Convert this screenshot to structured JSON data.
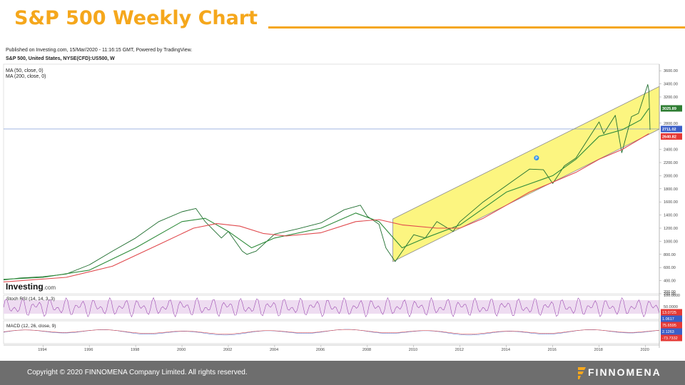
{
  "slide": {
    "title": "S&P 500 Weekly Chart",
    "copyright": "Copyright © 2020 FINNOMENA Company Limited. All rights reserved.",
    "brand": "FINNOMENA",
    "accent_color": "#f5a71c",
    "footer_color": "#6e6e6e"
  },
  "chart_header": {
    "published": "Published on Investing.com, 15/Mar/2020 - 11:16:15 GMT, Powered by TradingView.",
    "instrument": "S&P 500, United States, NYSE(CFD):US500, W",
    "indicator_ma50": "MA (50, close, 0)",
    "indicator_ma200": "MA (200, close, 0)",
    "watermark_main": "Investing",
    "watermark_suffix": ".com"
  },
  "chart_data": {
    "type": "line",
    "price_ylim": [
      200,
      3700
    ],
    "y_ticks": [
      "3600.00",
      "3400.00",
      "3200.00",
      "2800.00",
      "2400.00",
      "2200.00",
      "2000.00",
      "1800.00",
      "1600.00",
      "1400.00",
      "1200.00",
      "1000.00",
      "800.00",
      "600.00",
      "400.00",
      "200.00"
    ],
    "x_ticks": [
      "1994",
      "1996",
      "1998",
      "2000",
      "2002",
      "2004",
      "2006",
      "2008",
      "2010",
      "2012",
      "2014",
      "2016",
      "2018",
      "2020"
    ],
    "xlim": [
      1992.3,
      2020.6
    ],
    "series": [
      {
        "role": "price",
        "color": "#1f6e2f",
        "points": [
          [
            1992.3,
            410
          ],
          [
            1993,
            440
          ],
          [
            1994,
            460
          ],
          [
            1995,
            500
          ],
          [
            1996,
            640
          ],
          [
            1997,
            850
          ],
          [
            1998,
            1050
          ],
          [
            1999,
            1300
          ],
          [
            2000,
            1450
          ],
          [
            2000.6,
            1500
          ],
          [
            2001,
            1300
          ],
          [
            2001.7,
            1050
          ],
          [
            2002,
            1150
          ],
          [
            2002.6,
            850
          ],
          [
            2002.8,
            800
          ],
          [
            2003.2,
            850
          ],
          [
            2004,
            1110
          ],
          [
            2005,
            1190
          ],
          [
            2006,
            1280
          ],
          [
            2007,
            1480
          ],
          [
            2007.7,
            1550
          ],
          [
            2008,
            1380
          ],
          [
            2008.5,
            1260
          ],
          [
            2008.8,
            900
          ],
          [
            2009.2,
            690
          ],
          [
            2010,
            1100
          ],
          [
            2010.5,
            1050
          ],
          [
            2011,
            1300
          ],
          [
            2011.7,
            1150
          ],
          [
            2012,
            1300
          ],
          [
            2013,
            1600
          ],
          [
            2014,
            1850
          ],
          [
            2015,
            2100
          ],
          [
            2015.6,
            2090
          ],
          [
            2016,
            1880
          ],
          [
            2016.5,
            2150
          ],
          [
            2017,
            2270
          ],
          [
            2018,
            2820
          ],
          [
            2018.2,
            2640
          ],
          [
            2018.7,
            2920
          ],
          [
            2018.98,
            2350
          ],
          [
            2019.4,
            2900
          ],
          [
            2019.7,
            2950
          ],
          [
            2020.1,
            3390
          ],
          [
            2020.15,
            3300
          ],
          [
            2020.2,
            2700
          ]
        ]
      },
      {
        "role": "ma50",
        "color": "#2e8b3a",
        "points": [
          [
            1992.3,
            420
          ],
          [
            1994,
            450
          ],
          [
            1996,
            560
          ],
          [
            1998,
            900
          ],
          [
            2000,
            1300
          ],
          [
            2001,
            1350
          ],
          [
            2002,
            1150
          ],
          [
            2003,
            900
          ],
          [
            2004,
            1050
          ],
          [
            2006,
            1200
          ],
          [
            2007.5,
            1430
          ],
          [
            2008.5,
            1300
          ],
          [
            2009.5,
            900
          ],
          [
            2010.5,
            1050
          ],
          [
            2012,
            1250
          ],
          [
            2014,
            1750
          ],
          [
            2016,
            2000
          ],
          [
            2017,
            2250
          ],
          [
            2018,
            2600
          ],
          [
            2019,
            2700
          ],
          [
            2019.8,
            2850
          ],
          [
            2020.15,
            3025
          ]
        ]
      },
      {
        "role": "ma200",
        "color": "#e0494d",
        "points": [
          [
            1992.3,
            380
          ],
          [
            1995,
            450
          ],
          [
            1997,
            620
          ],
          [
            1999,
            950
          ],
          [
            2000.5,
            1200
          ],
          [
            2001.5,
            1270
          ],
          [
            2002.5,
            1230
          ],
          [
            2003.5,
            1120
          ],
          [
            2004.5,
            1080
          ],
          [
            2006,
            1130
          ],
          [
            2007.5,
            1300
          ],
          [
            2008.5,
            1330
          ],
          [
            2009.5,
            1250
          ],
          [
            2011,
            1200
          ],
          [
            2012,
            1200
          ],
          [
            2013,
            1350
          ],
          [
            2014,
            1550
          ],
          [
            2015,
            1750
          ],
          [
            2016,
            1900
          ],
          [
            2017,
            2050
          ],
          [
            2018,
            2250
          ],
          [
            2019,
            2400
          ],
          [
            2020.15,
            2640
          ]
        ]
      }
    ],
    "channel": {
      "upper": [
        [
          2009.1,
          1340
        ],
        [
          2020.6,
          3360
        ]
      ],
      "lower": [
        [
          2009.1,
          690
        ],
        [
          2020.6,
          2710
        ]
      ],
      "fill": "#fbf36a"
    },
    "horizontal_line": 2711.02,
    "price_labels": [
      {
        "text": "3025.89",
        "color": "#2e7d32"
      },
      {
        "text": "2711.02",
        "color": "#3b5fc8"
      },
      {
        "text": "2640.82",
        "color": "#e53935"
      }
    ],
    "marker": "P",
    "stoch_rsi": {
      "label": "Stoch RSI (14, 14, 3, 3)",
      "tick": "50.0000",
      "values": [
        {
          "text": "13.0725",
          "color": "#e53935"
        },
        {
          "text": "1.0617",
          "color": "#3b5fc8"
        }
      ]
    },
    "macd": {
      "label": "MACD (12, 26, close, 9)",
      "tick": "100.0000",
      "values": [
        {
          "text": "75.6595",
          "color": "#e53935"
        },
        {
          "text": "2.1263",
          "color": "#3b5fc8"
        },
        {
          "text": "-73.7332",
          "color": "#e53935"
        }
      ]
    },
    "rsi_tick_top": "100.0000",
    "price_tick_bottom": "200.00"
  }
}
